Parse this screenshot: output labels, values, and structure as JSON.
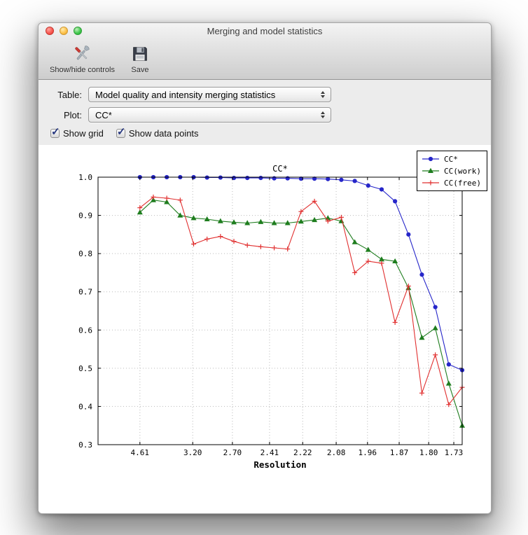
{
  "window": {
    "title": "Merging and model statistics",
    "traffic_lights": [
      "close",
      "minimize",
      "zoom"
    ],
    "toolbar": [
      {
        "label": "Show/hide controls",
        "icon": "tools-icon"
      },
      {
        "label": "Save",
        "icon": "save-icon"
      }
    ],
    "controls": {
      "table_label": "Table:",
      "table_value": "Model quality and intensity merging statistics",
      "plot_label": "Plot:",
      "plot_value": "CC*",
      "show_grid": {
        "label": "Show grid",
        "checked": true
      },
      "show_data_points": {
        "label": "Show data points",
        "checked": true
      }
    }
  },
  "chart_data": {
    "type": "line",
    "title": "CC*",
    "xlabel": "Resolution",
    "ylabel": "",
    "ylim": [
      0.3,
      1.0
    ],
    "yticks": [
      "0.3",
      "0.4",
      "0.5",
      "0.6",
      "0.7",
      "0.8",
      "0.9",
      "1.0"
    ],
    "x_ticks": [
      {
        "label": "4.61",
        "f": 0.115
      },
      {
        "label": "3.20",
        "f": 0.26
      },
      {
        "label": "2.70",
        "f": 0.369
      },
      {
        "label": "2.41",
        "f": 0.471
      },
      {
        "label": "2.22",
        "f": 0.562
      },
      {
        "label": "2.08",
        "f": 0.654
      },
      {
        "label": "1.96",
        "f": 0.74
      },
      {
        "label": "1.87",
        "f": 0.827
      },
      {
        "label": "1.80",
        "f": 0.908
      },
      {
        "label": "1.73",
        "f": 0.977
      }
    ],
    "x_data_range": [
      0.115,
      1.0
    ],
    "grid": true,
    "grid_color": "#bbbbbb",
    "legend_position": "upper right",
    "series": [
      {
        "name": "CC*",
        "color": "#2626c9",
        "marker": "circle",
        "values": [
          1.0,
          1.0,
          1.0,
          1.0,
          1.0,
          0.999,
          0.999,
          0.998,
          0.998,
          0.998,
          0.997,
          0.997,
          0.996,
          0.996,
          0.995,
          0.993,
          0.99,
          0.978,
          0.968,
          0.937,
          0.85,
          0.745,
          0.66,
          0.51,
          0.495
        ]
      },
      {
        "name": "CC(work)",
        "color": "#1e7d1e",
        "marker": "triangle",
        "values": [
          0.908,
          0.94,
          0.935,
          0.9,
          0.893,
          0.89,
          0.885,
          0.882,
          0.88,
          0.883,
          0.88,
          0.88,
          0.884,
          0.888,
          0.893,
          0.885,
          0.83,
          0.81,
          0.785,
          0.78,
          0.71,
          0.58,
          0.605,
          0.46,
          0.35
        ]
      },
      {
        "name": "CC(free)",
        "color": "#e13030",
        "marker": "plus",
        "values": [
          0.92,
          0.948,
          0.945,
          0.94,
          0.825,
          0.838,
          0.845,
          0.832,
          0.822,
          0.818,
          0.815,
          0.812,
          0.91,
          0.937,
          0.885,
          0.895,
          0.75,
          0.78,
          0.775,
          0.62,
          0.715,
          0.435,
          0.535,
          0.405,
          0.45
        ]
      }
    ]
  }
}
